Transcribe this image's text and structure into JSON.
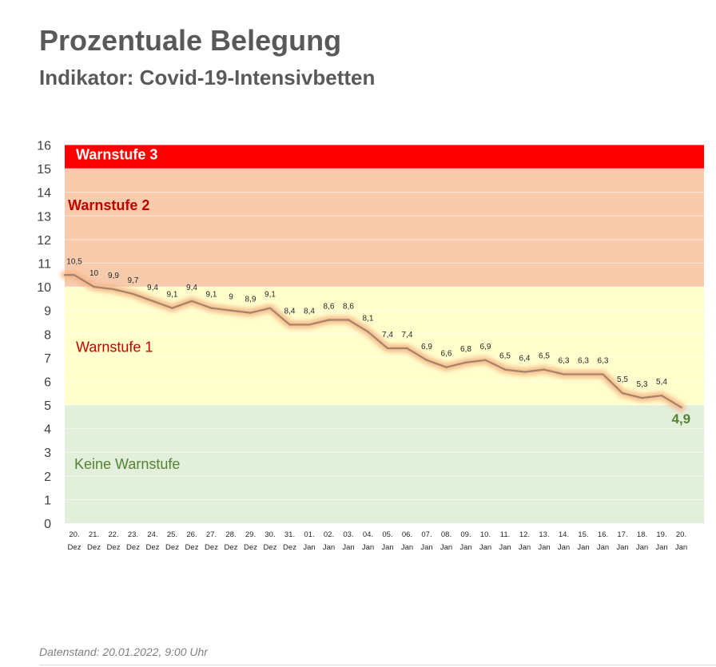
{
  "header": {
    "title": "Prozentuale Belegung",
    "subtitle": "Indikator: Covid-19-Intensivbetten"
  },
  "footer": {
    "note": "Datenstand: 20.01.2022, 9:00 Uhr"
  },
  "colors": {
    "warnstufe3_band": "#ff0000",
    "warnstufe2_band": "#f8cbad",
    "warnstufe1_band": "#ffffcc",
    "keine_band": "#e2efda",
    "line": "#a5836b",
    "glow": "#f4b183",
    "last_label": "#548235",
    "warnstufe2_text": "#c00000",
    "warnstufe1_text": "#c00000",
    "keine_text": "#548235"
  },
  "chart_data": {
    "type": "line",
    "title": "Prozentuale Belegung",
    "subtitle": "Indikator: Covid-19-Intensivbetten",
    "ylim": [
      0,
      16
    ],
    "yticks": [
      0,
      1,
      2,
      3,
      4,
      5,
      6,
      7,
      8,
      9,
      10,
      11,
      12,
      13,
      14,
      15,
      16
    ],
    "categories": [
      {
        "day": "20.",
        "month": "Dez"
      },
      {
        "day": "21.",
        "month": "Dez"
      },
      {
        "day": "22.",
        "month": "Dez"
      },
      {
        "day": "23.",
        "month": "Dez"
      },
      {
        "day": "24.",
        "month": "Dez"
      },
      {
        "day": "25.",
        "month": "Dez"
      },
      {
        "day": "26.",
        "month": "Dez"
      },
      {
        "day": "27.",
        "month": "Dez"
      },
      {
        "day": "28.",
        "month": "Dez"
      },
      {
        "day": "29.",
        "month": "Dez"
      },
      {
        "day": "30.",
        "month": "Dez"
      },
      {
        "day": "31.",
        "month": "Dez"
      },
      {
        "day": "01.",
        "month": "Jan"
      },
      {
        "day": "02.",
        "month": "Jan"
      },
      {
        "day": "03.",
        "month": "Jan"
      },
      {
        "day": "04.",
        "month": "Jan"
      },
      {
        "day": "05.",
        "month": "Jan"
      },
      {
        "day": "06.",
        "month": "Jan"
      },
      {
        "day": "07.",
        "month": "Jan"
      },
      {
        "day": "08.",
        "month": "Jan"
      },
      {
        "day": "09.",
        "month": "Jan"
      },
      {
        "day": "10.",
        "month": "Jan"
      },
      {
        "day": "11.",
        "month": "Jan"
      },
      {
        "day": "12.",
        "month": "Jan"
      },
      {
        "day": "13.",
        "month": "Jan"
      },
      {
        "day": "14.",
        "month": "Jan"
      },
      {
        "day": "15.",
        "month": "Jan"
      },
      {
        "day": "16.",
        "month": "Jan"
      },
      {
        "day": "17.",
        "month": "Jan"
      },
      {
        "day": "18.",
        "month": "Jan"
      },
      {
        "day": "19.",
        "month": "Jan"
      },
      {
        "day": "20.",
        "month": "Jan"
      }
    ],
    "values": [
      10.5,
      10,
      9.9,
      9.7,
      9.4,
      9.1,
      9.4,
      9.1,
      9,
      8.9,
      9.1,
      8.4,
      8.4,
      8.6,
      8.6,
      8.1,
      7.4,
      7.4,
      6.9,
      6.6,
      6.8,
      6.9,
      6.5,
      6.4,
      6.5,
      6.3,
      6.3,
      6.3,
      5.5,
      5.3,
      5.4,
      4.9
    ],
    "value_labels": [
      "10,5",
      "10",
      "9,9",
      "9,7",
      "9,4",
      "9,1",
      "9,4",
      "9,1",
      "9",
      "8,9",
      "9,1",
      "8,4",
      "8,4",
      "8,6",
      "8,6",
      "8,1",
      "7,4",
      "7,4",
      "6,9",
      "6,6",
      "6,8",
      "6,9",
      "6,5",
      "6,4",
      "6,5",
      "6,3",
      "6,3",
      "6,3",
      "5,5",
      "5,3",
      "5,4",
      "4,9"
    ],
    "bands": [
      {
        "name": "Warnstufe 3",
        "from": 15,
        "to": 16,
        "label_value": 15.6
      },
      {
        "name": "Warnstufe 2",
        "from": 10,
        "to": 15,
        "label_value": 13.45
      },
      {
        "name": "Warnstufe 1",
        "from": 5,
        "to": 10,
        "label_value": 7.45
      },
      {
        "name": "Keine Warnstufe",
        "from": 0,
        "to": 5,
        "label_value": 2.5
      }
    ]
  }
}
